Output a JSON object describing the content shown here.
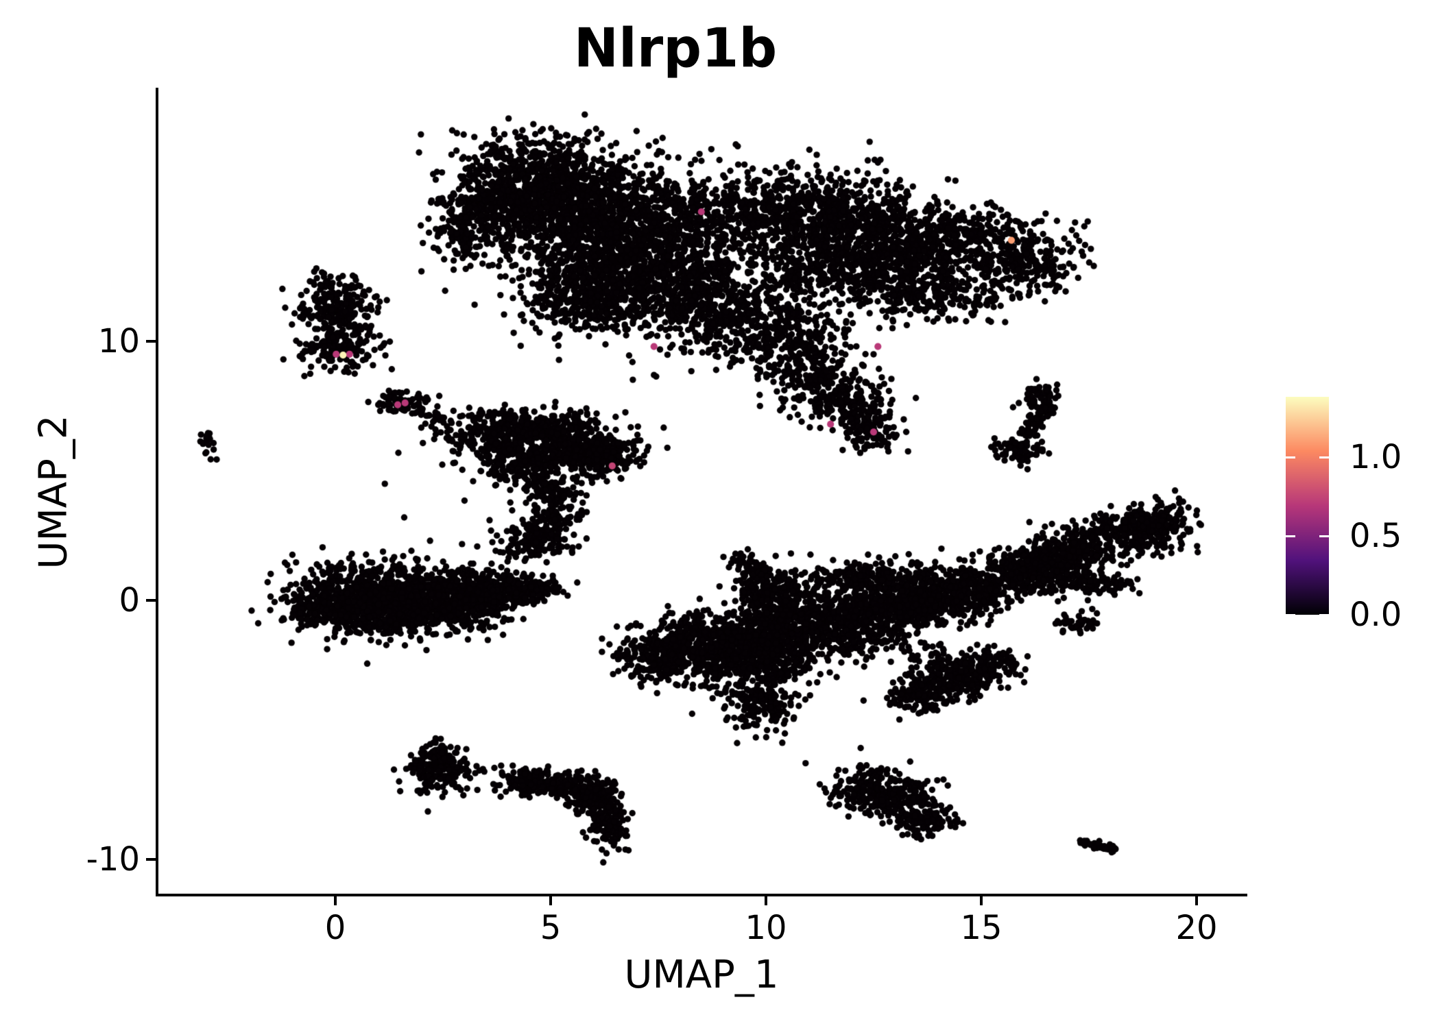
{
  "title": "Nlrp1b",
  "axes": {
    "x_label": "UMAP_1",
    "y_label": "UMAP_2",
    "x_ticks": [
      0,
      5,
      10,
      15,
      20
    ],
    "y_ticks": [
      10,
      0,
      -10
    ]
  },
  "colorbar": {
    "tick_labels": [
      "1.0",
      "0.5",
      "0.0"
    ],
    "tick_values": [
      1.0,
      0.5,
      0.0
    ],
    "bar_max": 1.38,
    "colormap": "magma",
    "gradient_stops": [
      "#000004",
      "#51127c",
      "#b73779",
      "#fc8961",
      "#fcfdbf"
    ]
  },
  "chart_data": {
    "type": "scatter",
    "title": "Nlrp1b",
    "xlabel": "UMAP_1",
    "ylabel": "UMAP_2",
    "xlim": [
      -4.2,
      21.2
    ],
    "ylim": [
      -11.4,
      19.7
    ],
    "point_color": "#050104",
    "legend_position": "right",
    "grid": false,
    "blob_format": [
      "x",
      "y",
      "sx",
      "sy",
      "n",
      "rot_deg"
    ],
    "blobs": [
      [
        4.6,
        16.3,
        1.05,
        0.85,
        650,
        0
      ],
      [
        3.6,
        14.9,
        0.6,
        0.8,
        250,
        0
      ],
      [
        5.6,
        15.1,
        0.9,
        0.9,
        600,
        0
      ],
      [
        6.6,
        13.6,
        1.2,
        1.3,
        1000,
        0
      ],
      [
        5.9,
        11.7,
        0.85,
        0.7,
        420,
        0
      ],
      [
        7.9,
        13.8,
        0.9,
        1.4,
        380,
        0
      ],
      [
        10.4,
        15.2,
        1.4,
        0.75,
        550,
        0
      ],
      [
        12.4,
        14.3,
        1.3,
        0.8,
        600,
        0
      ],
      [
        12.1,
        12.8,
        1.5,
        0.8,
        650,
        0
      ],
      [
        14.9,
        13.8,
        1.1,
        0.6,
        300,
        0
      ],
      [
        16.1,
        12.9,
        0.55,
        0.5,
        150,
        0
      ],
      [
        13.9,
        11.7,
        0.9,
        0.5,
        200,
        0
      ],
      [
        9.6,
        10.6,
        1.0,
        0.8,
        420,
        0
      ],
      [
        8.4,
        11.8,
        0.7,
        0.7,
        260,
        0
      ],
      [
        11.0,
        9.1,
        0.6,
        0.6,
        180,
        0
      ],
      [
        11.8,
        7.8,
        0.6,
        0.55,
        200,
        0
      ],
      [
        12.35,
        6.6,
        0.35,
        0.4,
        100,
        0
      ],
      [
        2.9,
        13.9,
        0.35,
        0.45,
        70,
        0
      ],
      [
        0.05,
        11.4,
        0.42,
        0.75,
        260,
        0
      ],
      [
        0.1,
        9.7,
        0.5,
        0.4,
        130,
        0
      ],
      [
        -3.0,
        6.1,
        0.12,
        0.25,
        22,
        15
      ],
      [
        1.55,
        7.6,
        0.32,
        0.22,
        70,
        0
      ],
      [
        3.9,
        6.4,
        0.75,
        0.5,
        330,
        0
      ],
      [
        5.2,
        6.2,
        0.75,
        0.5,
        330,
        0
      ],
      [
        6.1,
        5.55,
        0.5,
        0.4,
        220,
        0
      ],
      [
        4.35,
        5.3,
        0.5,
        0.4,
        160,
        0
      ],
      [
        4.95,
        4.25,
        0.4,
        0.5,
        110,
        0
      ],
      [
        5.05,
        3.15,
        0.35,
        0.45,
        90,
        0
      ],
      [
        4.6,
        2.2,
        0.5,
        0.35,
        110,
        0
      ],
      [
        0.7,
        0.15,
        0.85,
        0.7,
        650,
        0
      ],
      [
        2.2,
        0.1,
        0.95,
        0.6,
        650,
        0
      ],
      [
        3.5,
        0.3,
        0.65,
        0.45,
        280,
        0
      ],
      [
        4.5,
        0.45,
        0.4,
        0.22,
        110,
        0
      ],
      [
        1.4,
        -0.65,
        1.1,
        0.28,
        220,
        0
      ],
      [
        -0.45,
        -0.3,
        0.3,
        0.35,
        90,
        0
      ],
      [
        2.45,
        -6.55,
        0.42,
        0.42,
        210,
        0
      ],
      [
        2.35,
        -5.85,
        0.13,
        0.3,
        35,
        0
      ],
      [
        4.4,
        -6.95,
        0.35,
        0.25,
        90,
        0
      ],
      [
        5.2,
        -7.1,
        0.45,
        0.28,
        130,
        0
      ],
      [
        5.9,
        -7.6,
        0.3,
        0.3,
        90,
        0
      ],
      [
        6.35,
        -8.6,
        0.22,
        0.55,
        150,
        0
      ],
      [
        10.2,
        -0.1,
        0.5,
        0.6,
        260,
        0
      ],
      [
        8.6,
        -1.6,
        0.8,
        0.6,
        450,
        0
      ],
      [
        7.5,
        -2.2,
        0.5,
        0.45,
        200,
        0
      ],
      [
        9.7,
        -2.2,
        0.8,
        0.65,
        450,
        0
      ],
      [
        9.9,
        -3.9,
        0.45,
        0.55,
        160,
        0
      ],
      [
        11.3,
        -1.2,
        0.8,
        0.6,
        400,
        0
      ],
      [
        12.6,
        -0.4,
        0.9,
        0.55,
        420,
        0
      ],
      [
        13.9,
        0.3,
        0.8,
        0.5,
        380,
        0
      ],
      [
        14.9,
        0.4,
        0.45,
        0.45,
        200,
        0
      ],
      [
        12.1,
        0.9,
        0.7,
        0.35,
        180,
        0
      ],
      [
        19.25,
        2.9,
        0.35,
        0.5,
        140,
        0
      ],
      [
        16.3,
        1.2,
        0.5,
        0.4,
        160,
        0
      ],
      [
        17.5,
        0.6,
        0.6,
        0.2,
        110,
        0
      ],
      [
        17.2,
        -0.9,
        0.28,
        0.18,
        40,
        0
      ],
      [
        16.35,
        7.95,
        0.25,
        0.22,
        55,
        0
      ],
      [
        15.95,
        5.85,
        0.3,
        0.28,
        90,
        0
      ],
      [
        14.4,
        -2.85,
        0.55,
        0.45,
        260,
        0
      ],
      [
        13.6,
        -3.7,
        0.4,
        0.35,
        130,
        0
      ],
      [
        15.3,
        -2.45,
        0.3,
        0.3,
        70,
        0
      ],
      [
        12.75,
        -7.5,
        0.65,
        0.45,
        300,
        -30
      ],
      [
        13.75,
        -8.5,
        0.35,
        0.35,
        90,
        0
      ]
    ],
    "strip_format": [
      "x1",
      "y1",
      "x2",
      "y2",
      "width_sigma",
      "n"
    ],
    "strips": [
      [
        1.9,
        7.35,
        2.55,
        6.95,
        0.08,
        16
      ],
      [
        4.55,
        1.6,
        5.3,
        3.3,
        0.3,
        12
      ],
      [
        5.6,
        -7.2,
        6.2,
        -8.1,
        0.15,
        40
      ],
      [
        9.25,
        1.85,
        10.1,
        0.3,
        0.18,
        90
      ],
      [
        15.6,
        0.8,
        19.0,
        3.1,
        0.45,
        620
      ],
      [
        16.55,
        7.55,
        16.05,
        6.35,
        0.12,
        80
      ],
      [
        17.25,
        -9.35,
        18.15,
        -9.55,
        0.08,
        40
      ]
    ],
    "singles": [
      [
        0.7,
        10.6
      ],
      [
        0.45,
        8.75
      ],
      [
        2.7,
        6.85
      ],
      [
        1.15,
        4.5
      ],
      [
        1.6,
        3.2
      ],
      [
        2.2,
        2.3
      ],
      [
        3.2,
        4.6
      ],
      [
        3.0,
        3.85
      ],
      [
        4.0,
        1.5
      ],
      [
        5.05,
        0.95
      ],
      [
        3.28,
        -6.4
      ],
      [
        3.25,
        -6.67
      ],
      [
        3.85,
        -6.38
      ],
      [
        3.87,
        -6.64
      ],
      [
        4.12,
        -6.38
      ],
      [
        4.14,
        -6.64
      ],
      [
        8.3,
        -3.4
      ],
      [
        11.0,
        -3.2
      ],
      [
        13.1,
        -4.6
      ],
      [
        12.2,
        -5.7
      ],
      [
        15.2,
        0.45
      ],
      [
        14.95,
        0.15
      ],
      [
        15.45,
        -0.4
      ],
      [
        15.55,
        6.05
      ],
      [
        6.9,
        9.2
      ],
      [
        7.4,
        8.7
      ],
      [
        2.0,
        12.7
      ],
      [
        2.55,
        11.95
      ],
      [
        13.3,
        5.75
      ],
      [
        16.9,
        13.5
      ],
      [
        17.25,
        12.45
      ],
      [
        9.3,
        17.6
      ],
      [
        7.6,
        17.85
      ],
      [
        12.6,
        16.9
      ],
      [
        5.2,
        17.6
      ],
      [
        14.4,
        16.2
      ]
    ],
    "expressing_cells_format": [
      "x",
      "y",
      "expression_value"
    ],
    "expressing_cells": [
      [
        0.02,
        9.5,
        0.7
      ],
      [
        0.33,
        9.5,
        0.7
      ],
      [
        0.18,
        9.47,
        1.35
      ],
      [
        1.45,
        7.55,
        0.7
      ],
      [
        1.62,
        7.62,
        0.7
      ],
      [
        6.43,
        5.19,
        0.75
      ],
      [
        7.4,
        9.8,
        0.7
      ],
      [
        8.5,
        15.0,
        0.7
      ],
      [
        15.7,
        13.9,
        1.1
      ],
      [
        12.6,
        9.8,
        0.7
      ],
      [
        11.5,
        6.8,
        0.7
      ],
      [
        12.5,
        6.5,
        0.7
      ]
    ]
  }
}
